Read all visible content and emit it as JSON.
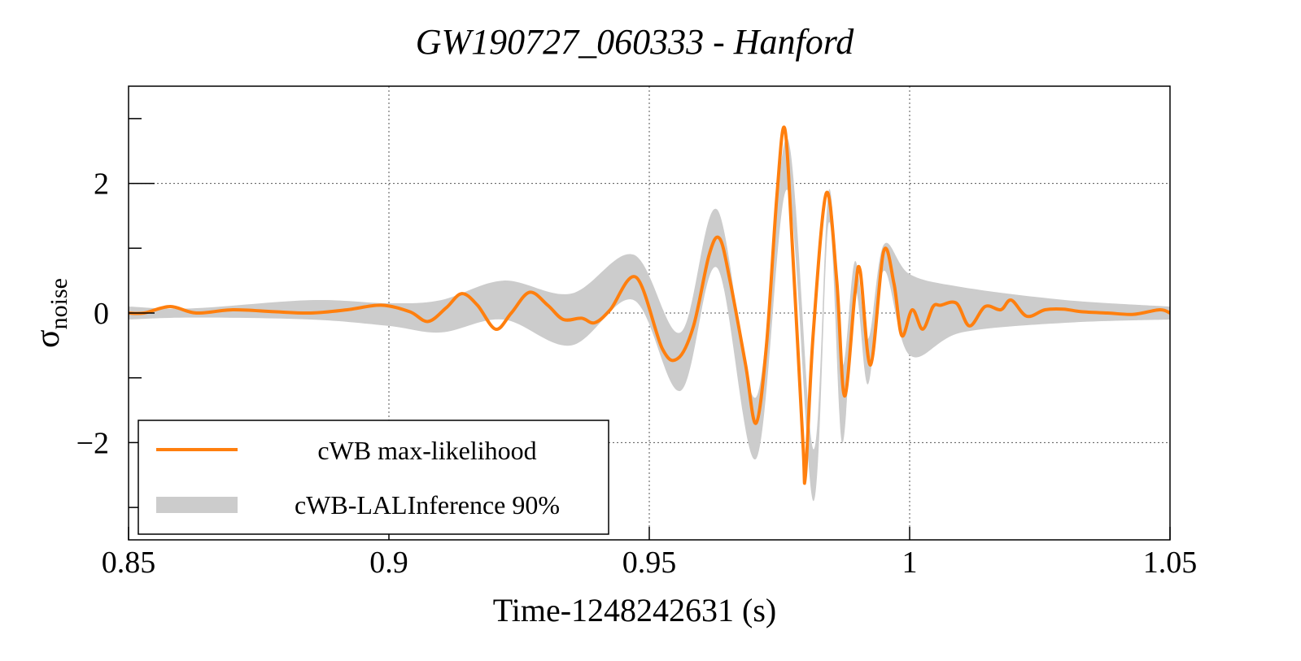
{
  "chart_data": {
    "type": "line",
    "title": "GW190727_060333 - Hanford",
    "xlabel": "Time-1248242631 (s)",
    "ylabel": {
      "main": "σ",
      "sub": "noise"
    },
    "xlim": [
      0.85,
      1.05
    ],
    "ylim": [
      -3.5,
      3.5
    ],
    "x_ticks": [
      0.85,
      0.9,
      0.95,
      1.0,
      1.05
    ],
    "x_tick_labels": [
      "0.85",
      "0.9",
      "0.95",
      "1",
      "1.05"
    ],
    "y_ticks": [
      -2,
      0,
      2
    ],
    "y_tick_labels": [
      "−2",
      "0",
      "2"
    ],
    "y_minor_ticks": [
      -3,
      -1,
      1,
      3
    ],
    "grid": true,
    "legend_position": "bottom-left",
    "colors": {
      "line": "#ff7f0e",
      "band": "#cccccc"
    },
    "series": [
      {
        "name": "cWB max-likelihood",
        "kind": "line",
        "x": [
          0.85,
          0.853,
          0.858,
          0.863,
          0.87,
          0.878,
          0.885,
          0.892,
          0.8985,
          0.904,
          0.9075,
          0.911,
          0.914,
          0.917,
          0.9205,
          0.9235,
          0.927,
          0.9305,
          0.9335,
          0.937,
          0.9395,
          0.9425,
          0.9475,
          0.9525,
          0.9555,
          0.9585,
          0.9615,
          0.9635,
          0.9655,
          0.9685,
          0.9705,
          0.9725,
          0.9745,
          0.976,
          0.9775,
          0.9795,
          0.98,
          0.9815,
          0.984,
          0.986,
          0.9875,
          0.9895,
          0.9905,
          0.9925,
          0.995,
          0.997,
          0.9985,
          1.0005,
          1.0025,
          1.0045,
          1.006,
          1.009,
          1.0115,
          1.0145,
          1.0175,
          1.0195,
          1.0225,
          1.026,
          1.0295,
          1.033,
          1.038,
          1.043,
          1.048,
          1.05
        ],
        "y": [
          0.0,
          0.0,
          0.1,
          0.0,
          0.05,
          0.02,
          0.0,
          0.05,
          0.12,
          0.02,
          -0.13,
          0.08,
          0.3,
          0.12,
          -0.25,
          0.0,
          0.32,
          0.12,
          -0.1,
          -0.08,
          -0.15,
          0.05,
          0.55,
          -0.55,
          -0.7,
          -0.2,
          0.9,
          1.15,
          0.5,
          -0.8,
          -1.7,
          -0.5,
          1.8,
          2.85,
          1.0,
          -2.0,
          -2.5,
          -0.3,
          1.85,
          0.5,
          -1.28,
          0.3,
          0.65,
          -0.8,
          0.95,
          0.45,
          -0.35,
          0.05,
          -0.25,
          0.1,
          0.12,
          0.15,
          -0.2,
          0.1,
          0.05,
          0.2,
          -0.05,
          0.05,
          0.06,
          0.02,
          0.0,
          -0.02,
          0.05,
          0.0
        ]
      },
      {
        "name": "cWB-LALInference 90%",
        "kind": "band",
        "x": [
          0.85,
          0.862,
          0.885,
          0.9,
          0.91,
          0.922,
          0.935,
          0.947,
          0.956,
          0.963,
          0.9705,
          0.9765,
          0.9815,
          0.9845,
          0.987,
          0.9895,
          0.992,
          0.995,
          1.0,
          1.01,
          1.03,
          1.05
        ],
        "upper": [
          0.1,
          0.07,
          0.2,
          0.15,
          0.2,
          0.5,
          0.3,
          0.9,
          -0.3,
          1.6,
          -1.3,
          2.7,
          -2.1,
          1.9,
          -0.8,
          0.8,
          -0.4,
          1.05,
          0.6,
          0.4,
          0.2,
          0.1
        ],
        "lower": [
          -0.1,
          -0.07,
          -0.1,
          -0.2,
          -0.3,
          -0.1,
          -0.5,
          0.2,
          -1.2,
          0.7,
          -2.25,
          1.9,
          -2.9,
          1.4,
          -2.0,
          0.35,
          -1.1,
          0.65,
          -0.65,
          -0.3,
          -0.15,
          -0.1
        ]
      }
    ]
  }
}
